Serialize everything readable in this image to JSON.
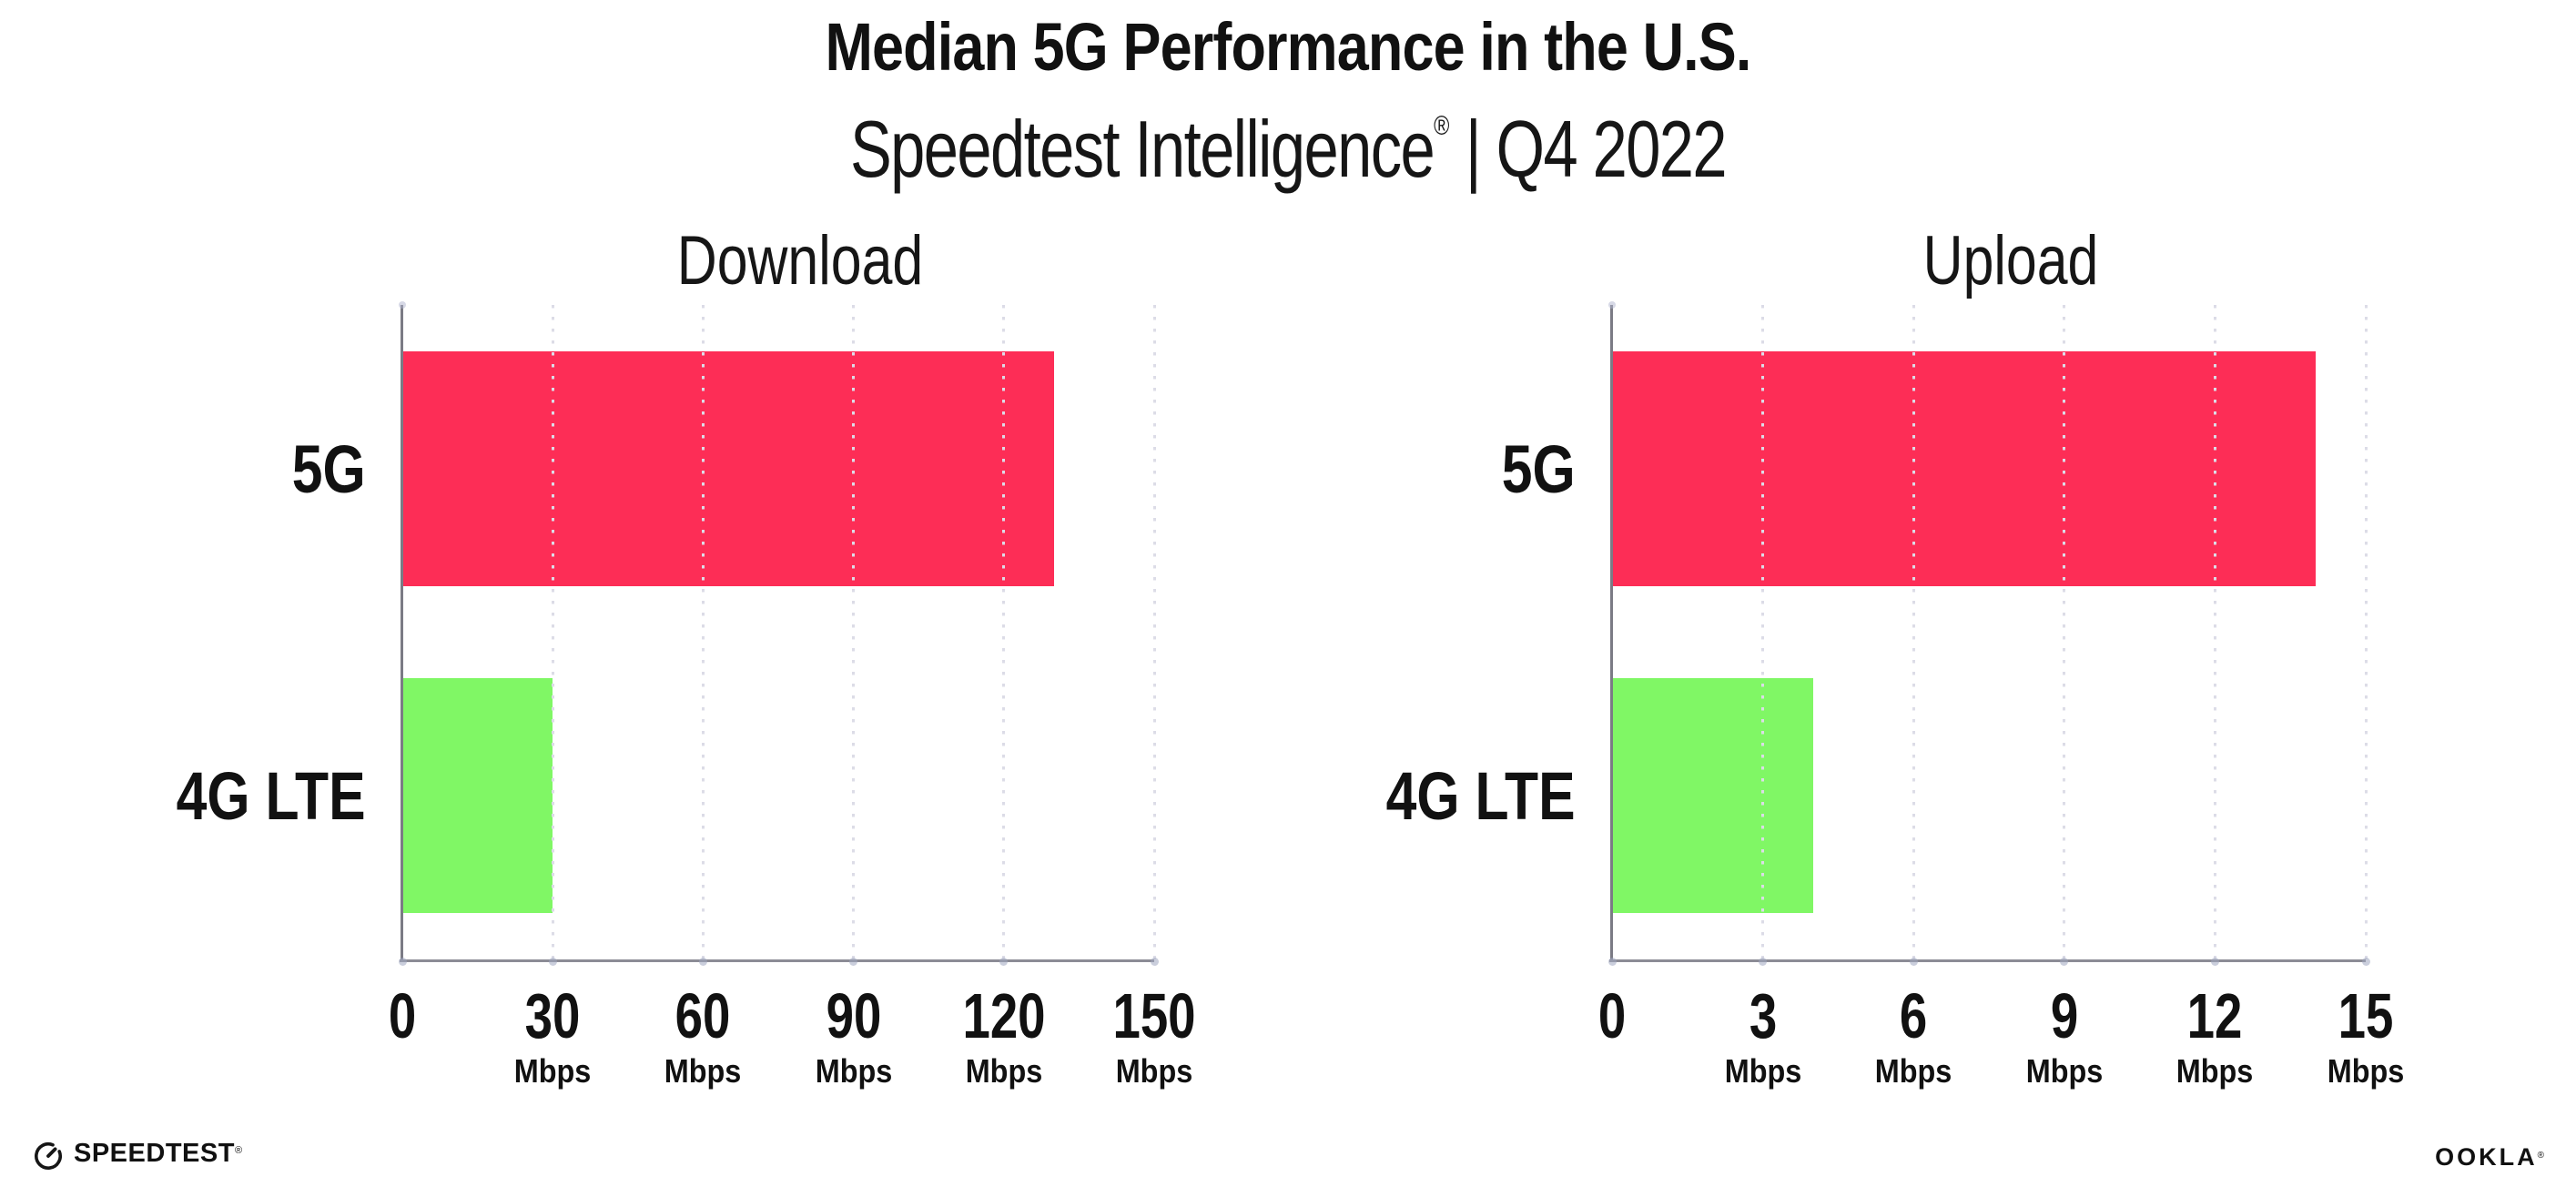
{
  "header": {
    "title": "Median 5G Performance in the U.S.",
    "subtitle_product": "Speedtest Intelligence",
    "subtitle_registered": "®",
    "subtitle_rest": " | Q4 2022"
  },
  "colors": {
    "bar_5g": "#FD2D56",
    "bar_4g": "#80F765",
    "axis": "#7B7B85",
    "axis_bottom": "#8C8C96",
    "gridline": "#DCDCE7",
    "text": "#111111",
    "background": "#FFFFFF"
  },
  "chart_data": [
    {
      "type": "bar",
      "orientation": "horizontal",
      "title": "Download",
      "categories": [
        "5G",
        "4G LTE"
      ],
      "values": [
        130,
        30
      ],
      "unit": "Mbps",
      "xlim": [
        0,
        150
      ],
      "ticks": [
        0,
        30,
        60,
        90,
        120,
        150
      ],
      "tick_unit": "Mbps",
      "grid": "dotted-vertical",
      "legend": "none"
    },
    {
      "type": "bar",
      "orientation": "horizontal",
      "title": "Upload",
      "categories": [
        "5G",
        "4G LTE"
      ],
      "values": [
        14,
        4
      ],
      "unit": "Mbps",
      "xlim": [
        0,
        15
      ],
      "ticks": [
        0,
        3,
        6,
        9,
        12,
        15
      ],
      "tick_unit": "Mbps",
      "grid": "dotted-vertical",
      "legend": "none"
    }
  ],
  "footer": {
    "speedtest_label": "SPEEDTEST",
    "speedtest_mark": "®",
    "ookla_label": "OOKLA",
    "ookla_mark": "®"
  }
}
